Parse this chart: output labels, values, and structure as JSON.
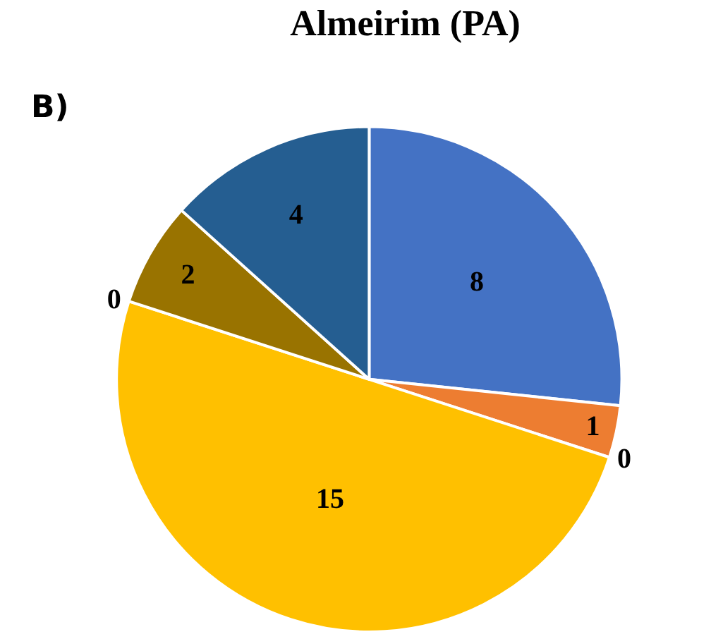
{
  "chart_data": {
    "type": "pie",
    "title": "Almeirim (PA)",
    "annotations": [
      "B)"
    ],
    "categories": [
      null,
      null,
      null,
      null,
      null,
      null,
      null
    ],
    "values": [
      8,
      1,
      0,
      15,
      0,
      2,
      4
    ],
    "colors": [
      "#4472c4",
      "#ed7d31",
      "#a5a5a5",
      "#ffc000",
      "#5b9bd5",
      "#997300",
      "#255e91"
    ],
    "value_labels": [
      "8",
      "1",
      "0",
      "15",
      "0",
      "2",
      "4"
    ],
    "legend": false
  }
}
